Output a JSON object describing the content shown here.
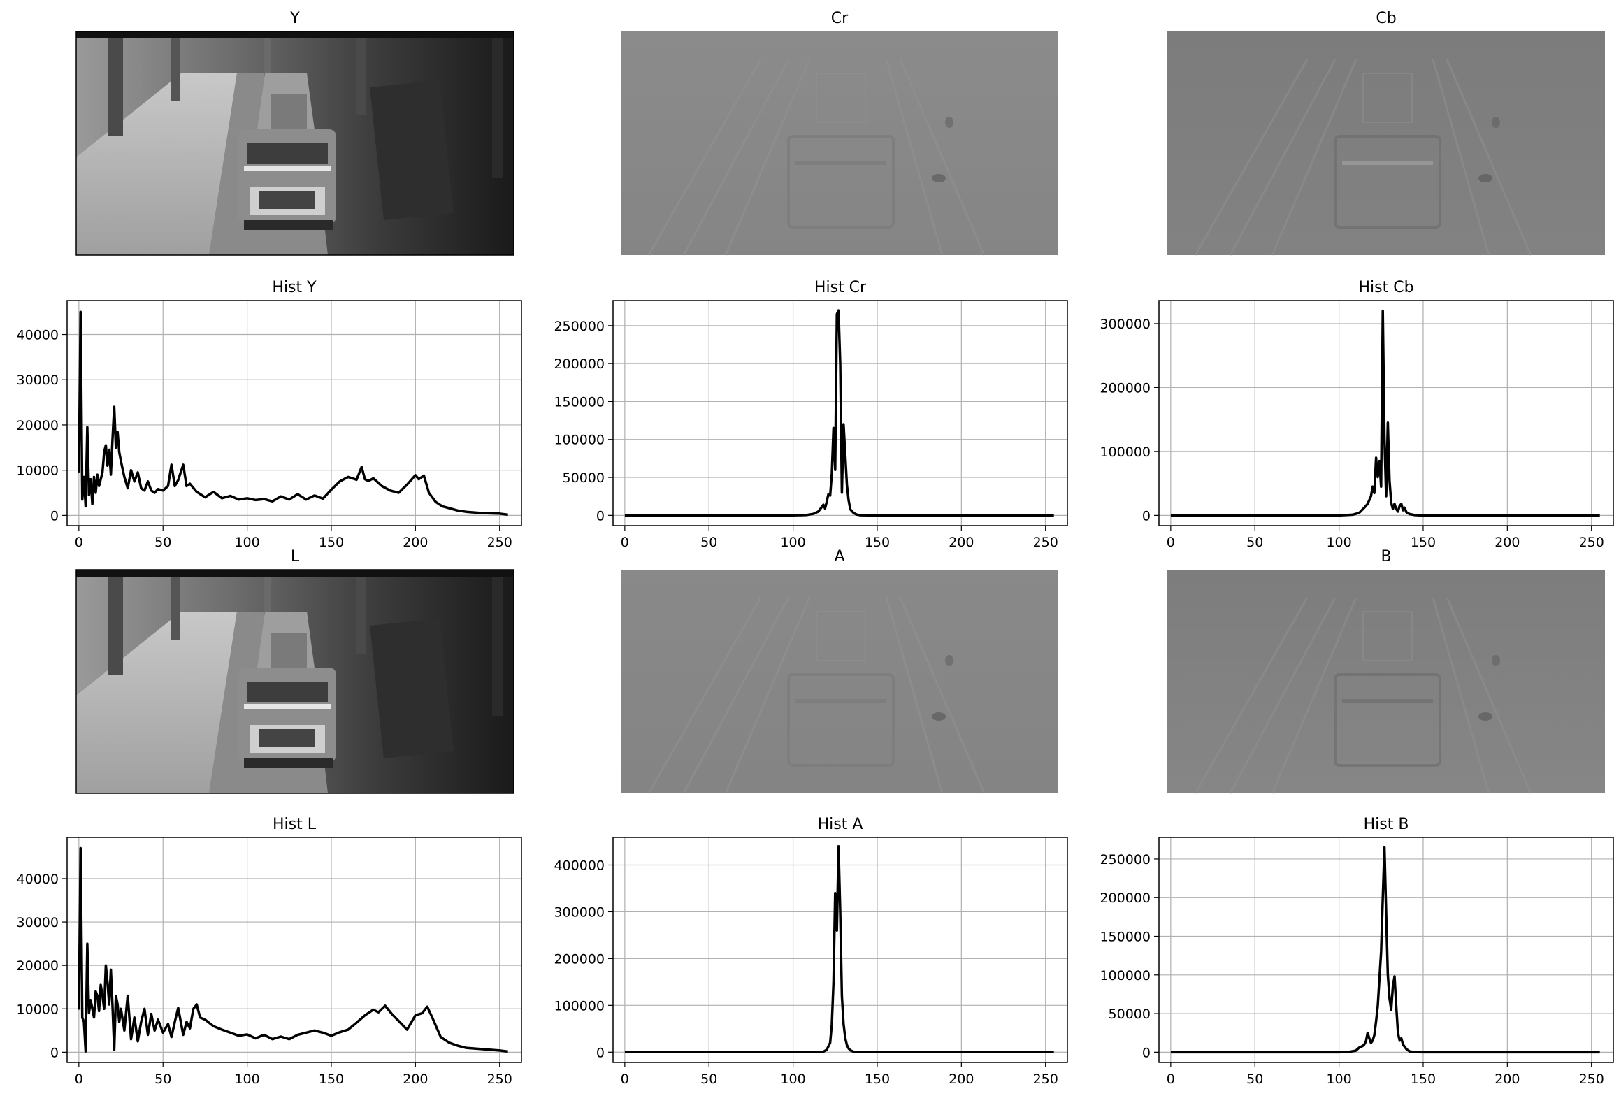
{
  "figure": {
    "image_panels": [
      {
        "title": "Y",
        "kind": "photo"
      },
      {
        "title": "Cr",
        "kind": "chroma_cr"
      },
      {
        "title": "Cb",
        "kind": "chroma_cb"
      },
      {
        "title": "L",
        "kind": "photo"
      },
      {
        "title": "A",
        "kind": "chroma_a"
      },
      {
        "title": "B",
        "kind": "chroma_b"
      }
    ]
  },
  "chart_data": [
    {
      "type": "line",
      "title": "Hist Y",
      "xlabel": "",
      "ylabel": "",
      "xlim": [
        -7,
        263
      ],
      "ylim": [
        -2260,
        47500
      ],
      "xticks": [
        0,
        50,
        100,
        150,
        200,
        250
      ],
      "yticks": [
        0,
        10000,
        20000,
        30000,
        40000
      ],
      "grid": true,
      "color": "#000000",
      "series": [
        {
          "x": [
            0,
            1,
            2,
            3,
            4,
            5,
            6,
            7,
            8,
            9,
            10,
            11,
            12,
            13,
            14,
            15,
            16,
            17,
            18,
            19,
            20,
            21,
            22,
            23,
            24,
            25,
            27,
            29,
            31,
            33,
            35,
            37,
            39,
            41,
            43,
            45,
            47,
            50,
            53,
            55,
            57,
            59,
            62,
            64,
            66,
            70,
            75,
            80,
            85,
            90,
            95,
            100,
            105,
            110,
            115,
            120,
            125,
            130,
            135,
            140,
            145,
            150,
            155,
            160,
            165,
            168,
            170,
            172,
            175,
            180,
            185,
            190,
            195,
            200,
            202,
            205,
            208,
            212,
            216,
            220,
            225,
            230,
            240,
            250,
            255
          ],
          "y": [
            9500,
            45000,
            3500,
            8500,
            2000,
            19500,
            4500,
            8000,
            2500,
            8500,
            5000,
            9000,
            6500,
            8000,
            9500,
            14000,
            15500,
            11000,
            14500,
            9000,
            17000,
            24000,
            15000,
            18500,
            14000,
            12000,
            8500,
            6000,
            10000,
            7500,
            9500,
            6000,
            5500,
            7500,
            5500,
            5000,
            5800,
            5500,
            6500,
            11200,
            6500,
            7800,
            11200,
            6500,
            7000,
            5200,
            4000,
            5200,
            3800,
            4300,
            3500,
            3800,
            3400,
            3600,
            3100,
            4200,
            3500,
            4700,
            3500,
            4400,
            3700,
            5700,
            7500,
            8500,
            7900,
            10700,
            8000,
            7600,
            8200,
            6500,
            5500,
            5000,
            6800,
            8900,
            8000,
            8800,
            5000,
            3000,
            2000,
            1600,
            1100,
            800,
            500,
            400,
            150
          ]
        }
      ]
    },
    {
      "type": "line",
      "title": "Hist Cr",
      "xlabel": "",
      "ylabel": "",
      "xlim": [
        -7,
        263
      ],
      "ylim": [
        -13500,
        283000
      ],
      "xticks": [
        0,
        50,
        100,
        150,
        200,
        250
      ],
      "yticks": [
        0,
        50000,
        100000,
        150000,
        200000,
        250000
      ],
      "grid": true,
      "color": "#000000",
      "series": [
        {
          "x": [
            0,
            100,
            108,
            112,
            115,
            117,
            118,
            119,
            120,
            121,
            122,
            123,
            124,
            125,
            126,
            127,
            128,
            129,
            130,
            131,
            132,
            133,
            134,
            136,
            138,
            140,
            145,
            150,
            255
          ],
          "y": [
            0,
            0,
            500,
            2000,
            5000,
            11000,
            14000,
            9000,
            18000,
            28000,
            26000,
            55000,
            115000,
            60000,
            265000,
            270000,
            200000,
            30000,
            120000,
            80000,
            40000,
            20000,
            8000,
            3000,
            1000,
            200,
            0,
            0,
            0
          ]
        }
      ]
    },
    {
      "type": "line",
      "title": "Hist Cb",
      "xlabel": "",
      "ylabel": "",
      "xlim": [
        -7,
        263
      ],
      "ylim": [
        -16000,
        336000
      ],
      "xticks": [
        0,
        50,
        100,
        150,
        200,
        250
      ],
      "yticks": [
        0,
        100000,
        200000,
        300000
      ],
      "grid": true,
      "color": "#000000",
      "series": [
        {
          "x": [
            0,
            100,
            108,
            112,
            115,
            117,
            119,
            120,
            121,
            122,
            123,
            124,
            125,
            126,
            127,
            128,
            129,
            130,
            131,
            132,
            133,
            134,
            135,
            136,
            137,
            138,
            139,
            140,
            142,
            145,
            148,
            150,
            255
          ],
          "y": [
            0,
            0,
            1000,
            4000,
            12000,
            18000,
            30000,
            45000,
            35000,
            90000,
            60000,
            85000,
            45000,
            320000,
            120000,
            30000,
            145000,
            55000,
            20000,
            10000,
            18000,
            10000,
            6000,
            15000,
            18000,
            8000,
            12000,
            5000,
            2000,
            500,
            100,
            0,
            0
          ]
        }
      ]
    },
    {
      "type": "line",
      "title": "Hist L",
      "xlabel": "",
      "ylabel": "",
      "xlim": [
        -7,
        263
      ],
      "ylim": [
        -2360,
        49500
      ],
      "xticks": [
        0,
        50,
        100,
        150,
        200,
        250
      ],
      "yticks": [
        0,
        10000,
        20000,
        30000,
        40000
      ],
      "grid": true,
      "color": "#000000",
      "series": [
        {
          "x": [
            0,
            1,
            2,
            3,
            4,
            5,
            6,
            7,
            8,
            9,
            10,
            11,
            12,
            13,
            14,
            15,
            16,
            17,
            18,
            19,
            20,
            21,
            22,
            23,
            24,
            25,
            27,
            29,
            31,
            33,
            35,
            37,
            39,
            41,
            43,
            45,
            47,
            50,
            53,
            55,
            57,
            59,
            62,
            64,
            66,
            68,
            70,
            72,
            75,
            80,
            85,
            90,
            95,
            100,
            105,
            110,
            115,
            120,
            125,
            130,
            135,
            140,
            145,
            150,
            155,
            160,
            165,
            170,
            175,
            178,
            182,
            186,
            190,
            195,
            200,
            204,
            207,
            210,
            215,
            220,
            225,
            230,
            240,
            250,
            255
          ],
          "y": [
            9800,
            47000,
            8000,
            7000,
            200,
            25000,
            9000,
            12000,
            10000,
            8000,
            14000,
            13000,
            9500,
            15500,
            13000,
            10000,
            20000,
            16000,
            11000,
            19000,
            10500,
            500,
            13000,
            11000,
            7000,
            10000,
            5000,
            13000,
            3000,
            8000,
            2500,
            7000,
            10000,
            4000,
            8800,
            5000,
            7500,
            4500,
            6500,
            3500,
            7000,
            10200,
            4000,
            7000,
            5500,
            10000,
            11000,
            8000,
            7500,
            6000,
            5200,
            4500,
            3800,
            4100,
            3200,
            4000,
            3000,
            3600,
            3000,
            4000,
            4500,
            5000,
            4500,
            3800,
            4600,
            5200,
            6800,
            8500,
            9800,
            9200,
            10700,
            8800,
            7200,
            5200,
            8500,
            9000,
            10500,
            8000,
            3500,
            2200,
            1500,
            1000,
            700,
            400,
            150
          ]
        }
      ]
    },
    {
      "type": "line",
      "title": "Hist A",
      "xlabel": "",
      "ylabel": "",
      "xlim": [
        -7,
        263
      ],
      "ylim": [
        -22000,
        459000
      ],
      "xticks": [
        0,
        50,
        100,
        150,
        200,
        250
      ],
      "yticks": [
        0,
        100000,
        200000,
        300000,
        400000
      ],
      "grid": true,
      "color": "#000000",
      "series": [
        {
          "x": [
            0,
            110,
            118,
            120,
            122,
            123,
            124,
            125,
            126,
            127,
            128,
            129,
            130,
            131,
            132,
            133,
            134,
            136,
            138,
            140,
            145,
            150,
            255
          ],
          "y": [
            0,
            0,
            1000,
            5000,
            20000,
            60000,
            150000,
            340000,
            260000,
            440000,
            300000,
            120000,
            60000,
            30000,
            15000,
            8000,
            4000,
            1000,
            200,
            0,
            0,
            0,
            0
          ]
        }
      ]
    },
    {
      "type": "line",
      "title": "Hist B",
      "xlabel": "",
      "ylabel": "",
      "xlim": [
        -7,
        263
      ],
      "ylim": [
        -13250,
        278000
      ],
      "xticks": [
        0,
        50,
        100,
        150,
        200,
        250
      ],
      "yticks": [
        0,
        50000,
        100000,
        150000,
        200000,
        250000
      ],
      "grid": true,
      "color": "#000000",
      "series": [
        {
          "x": [
            0,
            100,
            106,
            110,
            112,
            114,
            115,
            116,
            117,
            118,
            119,
            120,
            121,
            122,
            123,
            124,
            125,
            126,
            127,
            128,
            129,
            130,
            131,
            132,
            133,
            134,
            135,
            136,
            137,
            138,
            140,
            142,
            145,
            150,
            255
          ],
          "y": [
            0,
            0,
            500,
            2000,
            6000,
            8000,
            10000,
            14000,
            25000,
            18000,
            12000,
            15000,
            22000,
            40000,
            60000,
            95000,
            130000,
            200000,
            265000,
            180000,
            100000,
            70000,
            55000,
            85000,
            98000,
            60000,
            25000,
            15000,
            18000,
            10000,
            4000,
            1000,
            200,
            0,
            0
          ]
        }
      ]
    }
  ]
}
